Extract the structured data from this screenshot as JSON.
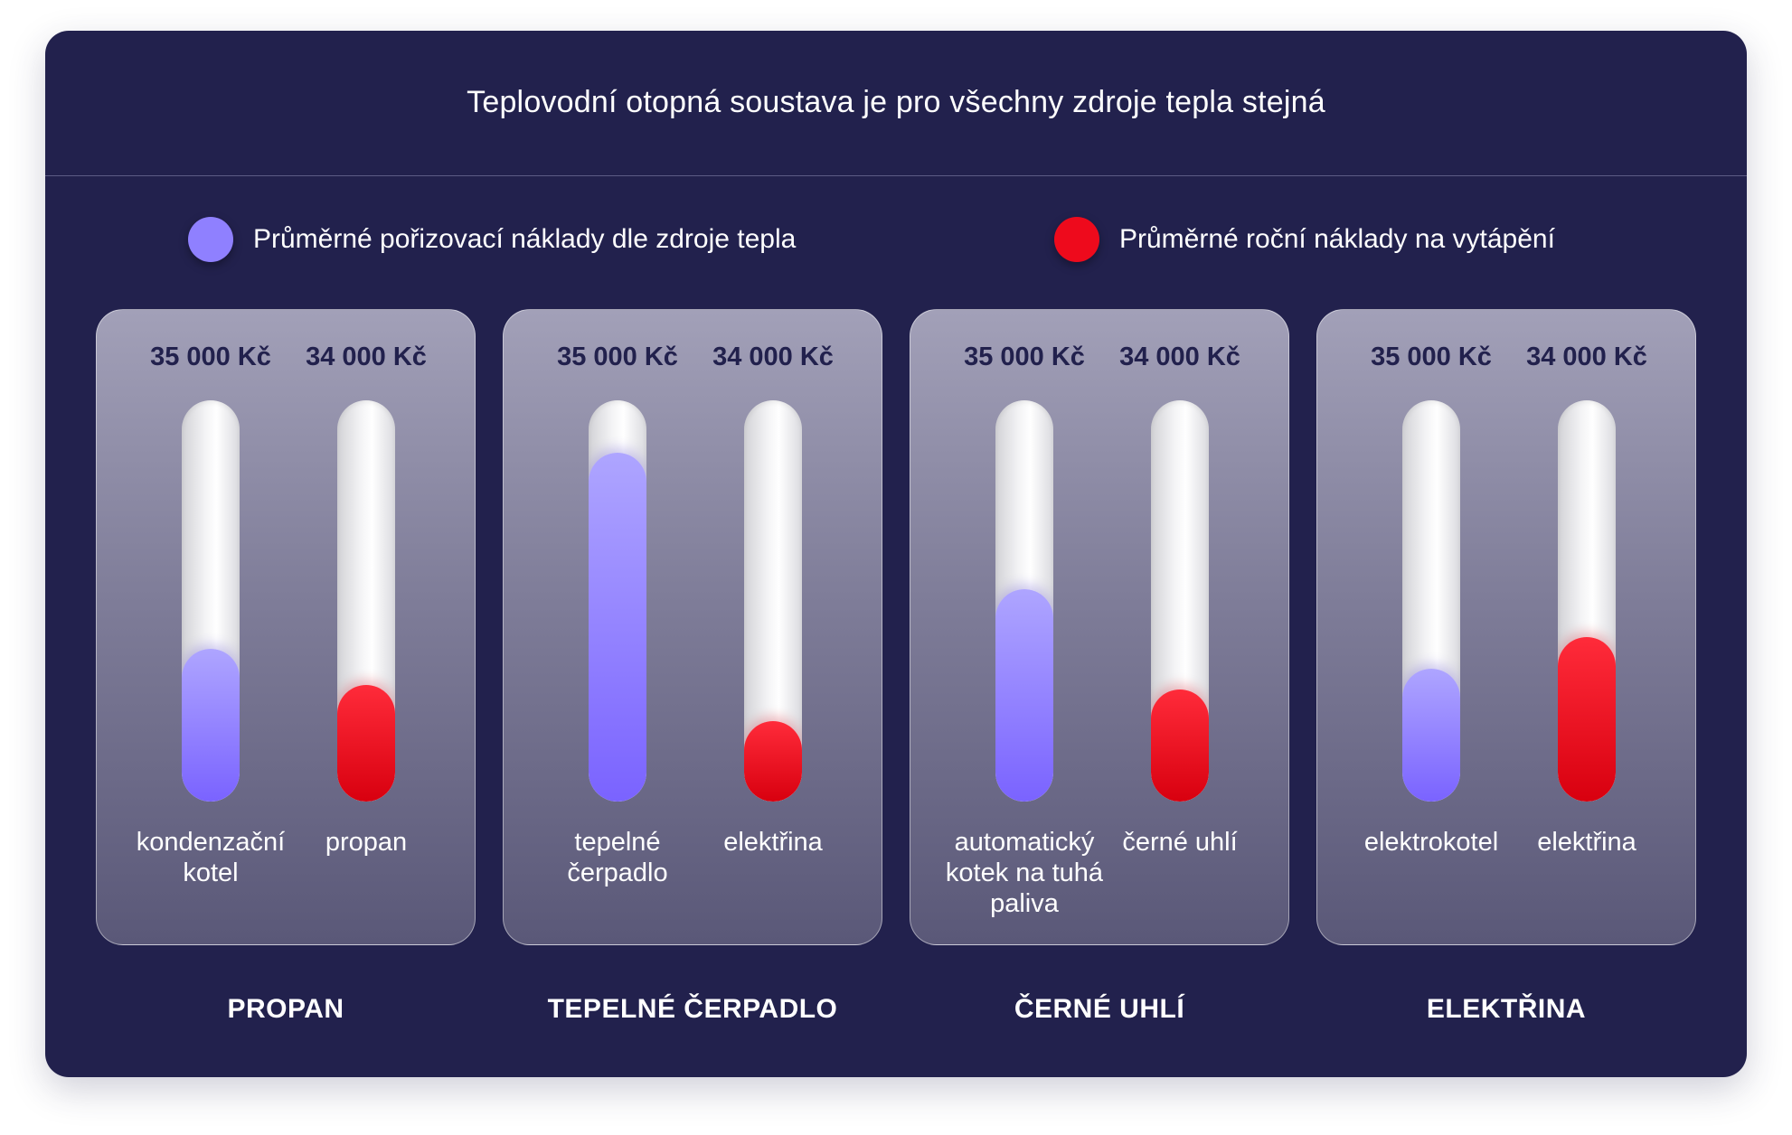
{
  "title": "Teplovodní otopná soustava je pro všechny zdroje tepla stejná",
  "legend": [
    {
      "label": "Průměrné pořizovací náklady dle zdroje tepla",
      "color": "#8f80ff"
    },
    {
      "label": "Průměrné roční náklady na vytápění",
      "color": "#ee0a1c"
    }
  ],
  "chart_data": {
    "type": "bar",
    "groups": [
      {
        "name": "PROPAN",
        "bars": [
          {
            "series": "purchase",
            "value_label": "35 000 Kč",
            "label": "kondenzační kotel",
            "fill": 0.38
          },
          {
            "series": "annual",
            "value_label": "34 000 Kč",
            "label": "propan",
            "fill": 0.29
          }
        ]
      },
      {
        "name": "TEPELNÉ ČERPADLO",
        "bars": [
          {
            "series": "purchase",
            "value_label": "35 000 Kč",
            "label": "tepelné čerpadlo",
            "fill": 0.87
          },
          {
            "series": "annual",
            "value_label": "34 000 Kč",
            "label": "elektřina",
            "fill": 0.2
          }
        ]
      },
      {
        "name": "ČERNÉ UHLÍ",
        "bars": [
          {
            "series": "purchase",
            "value_label": "35 000 Kč",
            "label": "automatický kotek na tuhá paliva",
            "fill": 0.53
          },
          {
            "series": "annual",
            "value_label": "34 000 Kč",
            "label": "černé uhlí",
            "fill": 0.28
          }
        ]
      },
      {
        "name": "ELEKTŘINA",
        "bars": [
          {
            "series": "purchase",
            "value_label": "35 000 Kč",
            "label": "elektrokotel",
            "fill": 0.33
          },
          {
            "series": "annual",
            "value_label": "34 000 Kč",
            "label": "elektřina",
            "fill": 0.41
          }
        ]
      }
    ]
  }
}
